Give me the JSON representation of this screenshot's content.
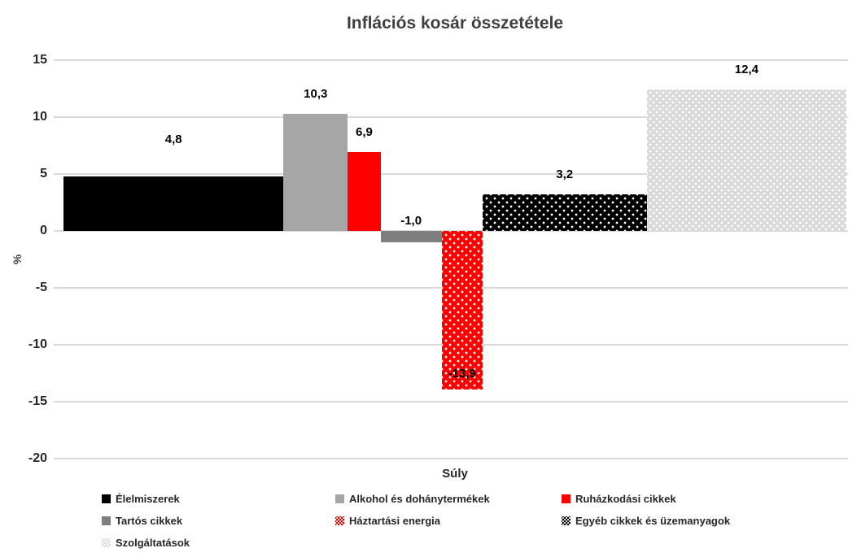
{
  "colors": {
    "title_text": "#3f3f3f",
    "axis_text": "#262626",
    "data_label_text": "#000000",
    "gridline": "#d9d9d9",
    "background": "#ffffff"
  },
  "chart_data": {
    "type": "bar",
    "variant": "variable-width-bars (bar width proportional to basket weight)",
    "title": "Inflációs kosár összetétele",
    "xlabel": "Súly",
    "ylabel": "%",
    "ylim": [
      -20,
      15
    ],
    "yticks": [
      15,
      10,
      5,
      0,
      -5,
      -10,
      -15,
      -20
    ],
    "grid": "horizontal",
    "legend_position": "bottom",
    "categories": [
      "Élelmiszerek",
      "Alkohol és dohánytermékek",
      "Ruházkodási cikkek",
      "Tartós cikkek",
      "Háztartási energia",
      "Egyéb cikkek és üzemanyagok",
      "Szolgáltatások"
    ],
    "values": [
      4.8,
      10.3,
      6.9,
      -1.0,
      -13.9,
      3.2,
      12.4
    ],
    "value_labels": [
      "4,8",
      "10,3",
      "6,9",
      "-1,0",
      "-13,9",
      "3,2",
      "12,4"
    ],
    "weights_pct_est": [
      28.1,
      8.2,
      4.2,
      7.8,
      5.2,
      21.0,
      25.5
    ],
    "bar_styles": [
      {
        "color": "#000000",
        "pattern": "solid"
      },
      {
        "color": "#a6a6a6",
        "pattern": "solid"
      },
      {
        "color": "#fe0000",
        "pattern": "solid"
      },
      {
        "color": "#7f7f7f",
        "pattern": "solid"
      },
      {
        "color": "#fe0000",
        "pattern": "dots",
        "dot_spacing": 10
      },
      {
        "color": "#000000",
        "pattern": "dots",
        "dot_spacing": 10
      },
      {
        "color": "#d9d9d9",
        "pattern": "dots",
        "dot_spacing": 8
      }
    ],
    "label_placement": [
      "above-far",
      "above",
      "above",
      "above-zero",
      "inside-end",
      "above",
      "above"
    ]
  }
}
